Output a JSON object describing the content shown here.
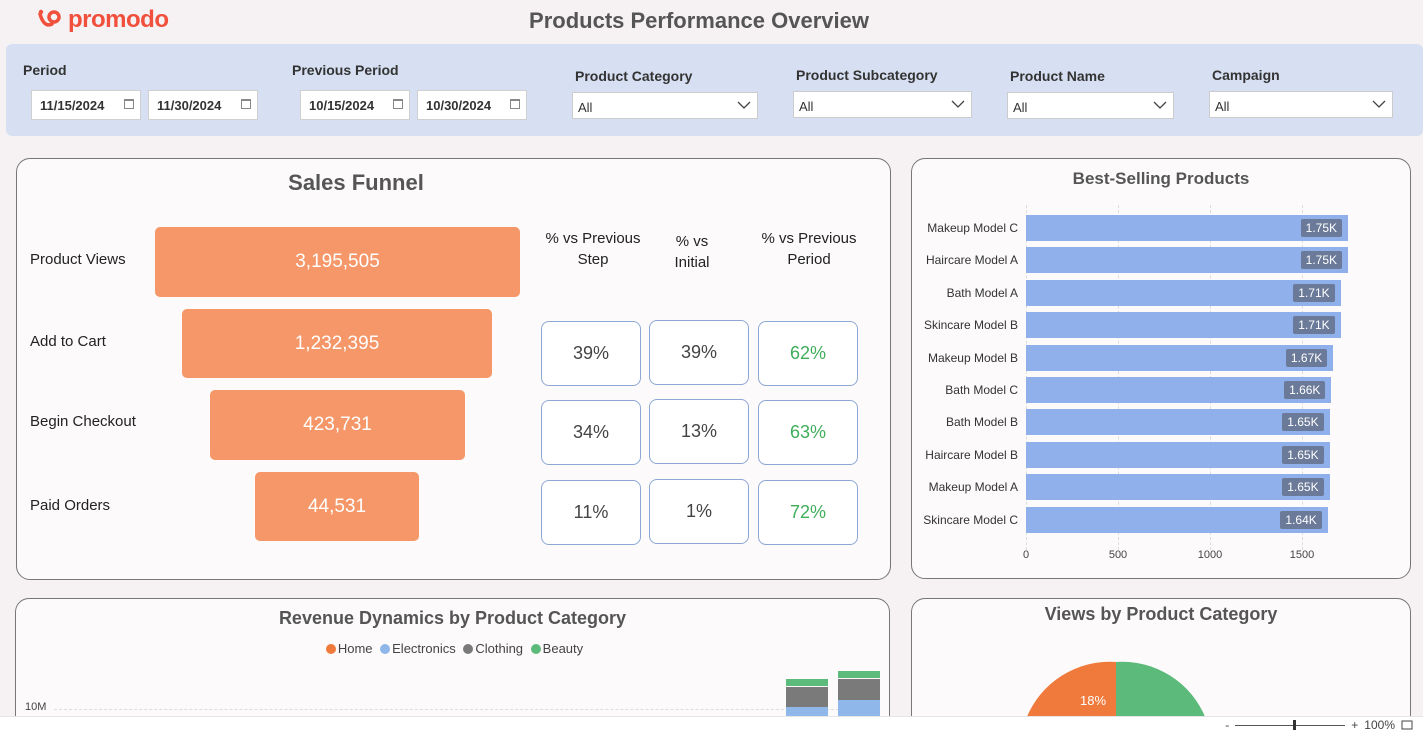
{
  "app": {
    "logo_text": "promodo",
    "title": "Products Performance Overview"
  },
  "filters": {
    "period_label": "Period",
    "period_start": "11/15/2024",
    "period_end": "11/30/2024",
    "prev_period_label": "Previous Period",
    "prev_start": "10/15/2024",
    "prev_end": "10/30/2024",
    "category_label": "Product Category",
    "category_value": "All",
    "subcategory_label": "Product Subcategory",
    "subcategory_value": "All",
    "name_label": "Product Name",
    "name_value": "All",
    "campaign_label": "Campaign",
    "campaign_value": "All"
  },
  "funnel": {
    "title": "Sales Funnel",
    "col_prev_step": "% vs Previous Step",
    "col_initial": "% vs Initial",
    "col_prev_period": "% vs Previous Period",
    "steps": [
      {
        "label": "Product Views",
        "value": "3,195,505",
        "prev_step": "",
        "initial": "",
        "prev_period": ""
      },
      {
        "label": "Add to Cart",
        "value": "1,232,395",
        "prev_step": "39%",
        "initial": "39%",
        "prev_period": "62%"
      },
      {
        "label": "Begin Checkout",
        "value": "423,731",
        "prev_step": "34%",
        "initial": "13%",
        "prev_period": "63%"
      },
      {
        "label": "Paid Orders",
        "value": "44,531",
        "prev_step": "11%",
        "initial": "1%",
        "prev_period": "72%"
      }
    ]
  },
  "chart_data": [
    {
      "type": "bar",
      "orientation": "horizontal",
      "title": "Best-Selling Products",
      "categories": [
        "Makeup Model C",
        "Haircare Model A",
        "Bath Model A",
        "Skincare Model B",
        "Makeup Model B",
        "Bath Model C",
        "Bath Model B",
        "Haircare Model B",
        "Makeup Model A",
        "Skincare Model C"
      ],
      "values": [
        1750,
        1750,
        1710,
        1710,
        1670,
        1660,
        1650,
        1650,
        1650,
        1640
      ],
      "value_labels": [
        "1.75K",
        "1.75K",
        "1.71K",
        "1.71K",
        "1.67K",
        "1.66K",
        "1.65K",
        "1.65K",
        "1.65K",
        "1.64K"
      ],
      "xticks": [
        "0",
        "500",
        "1000",
        "1500"
      ],
      "xlim": [
        0,
        2000
      ]
    },
    {
      "type": "bar",
      "stacked": true,
      "title": "Revenue Dynamics by Product Category",
      "legend": [
        "Home",
        "Electronics",
        "Clothing",
        "Beauty"
      ],
      "colors": [
        "#f07a3c",
        "#8fb7ea",
        "#7a7a7a",
        "#5cba7a"
      ],
      "ytick_label": "10M"
    },
    {
      "type": "pie",
      "title": "Views by Product Category",
      "slice_label": "18%",
      "colors": [
        "#f07a3c",
        "#5cba7a"
      ]
    }
  ],
  "status": {
    "zoom_minus": "-",
    "zoom_plus": "+",
    "zoom_level": "100%"
  }
}
